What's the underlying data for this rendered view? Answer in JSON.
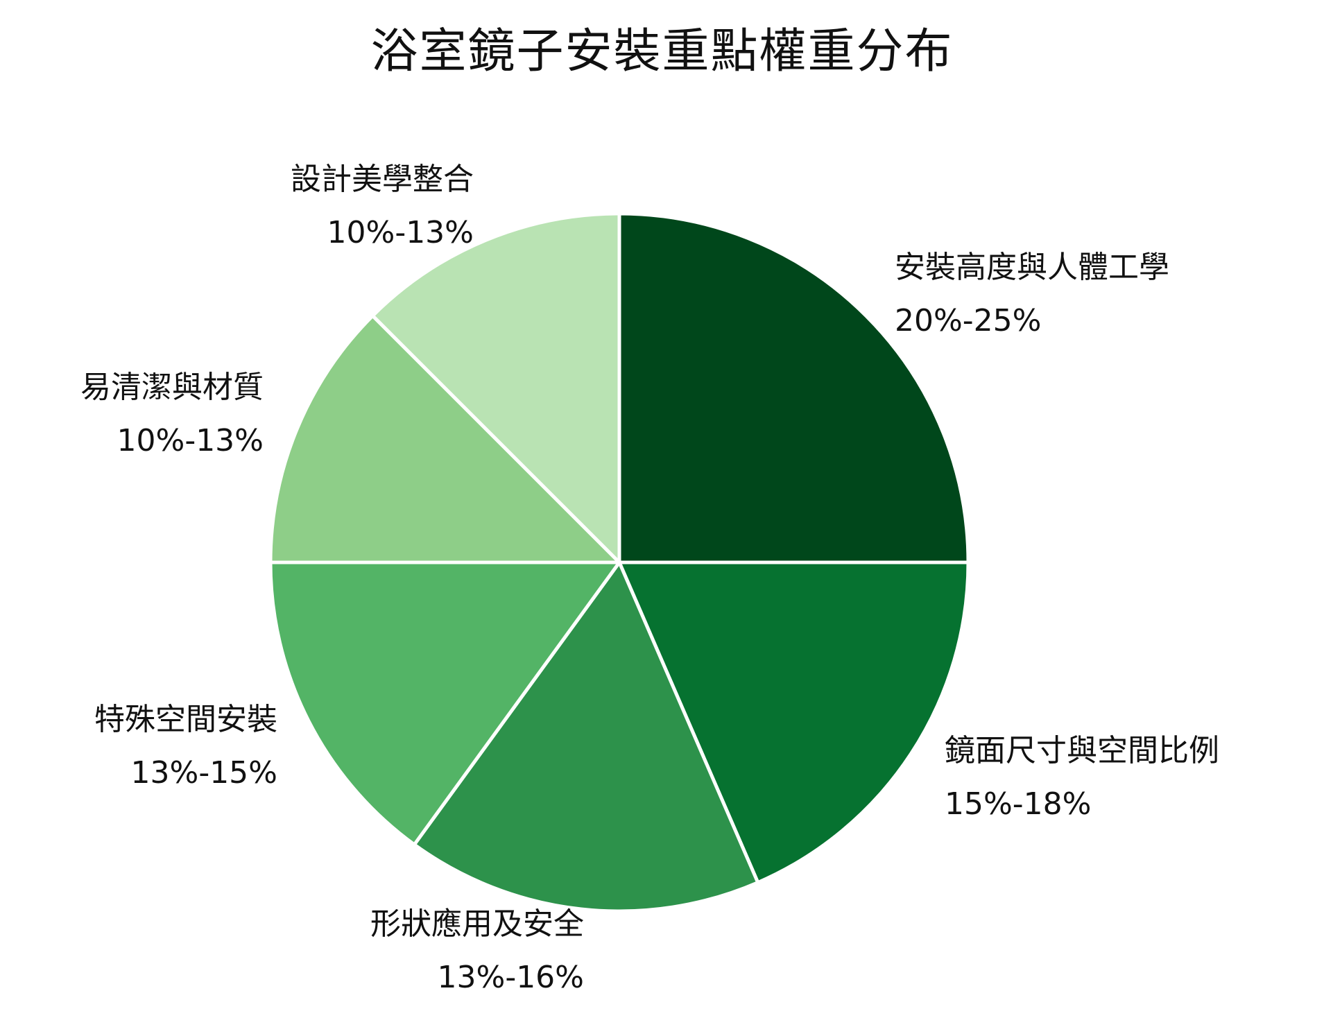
{
  "chart_data": {
    "type": "pie",
    "title": "浴室鏡子安裝重點權重分布",
    "slices": [
      {
        "label": "安裝高度與人體工學",
        "range_label": "20%-25%",
        "value": 25,
        "color": "#00471b"
      },
      {
        "label": "鏡面尺寸與空間比例",
        "range_label": "15%-18%",
        "value": 18.5,
        "color": "#067230"
      },
      {
        "label": "形狀應用及安全",
        "range_label": "13%-16%",
        "value": 16.5,
        "color": "#2d924b"
      },
      {
        "label": "特殊空間安裝",
        "range_label": "13%-15%",
        "value": 15,
        "color": "#53b466"
      },
      {
        "label": "易清潔與材質",
        "range_label": "10%-13%",
        "value": 12.5,
        "color": "#8ece88"
      },
      {
        "label": "設計美學整合",
        "range_label": "10%-13%",
        "value": 12.5,
        "color": "#b9e3b3"
      }
    ],
    "start_angle": "12 o'clock",
    "direction": "clockwise",
    "slice_border_color": "#ffffff"
  }
}
